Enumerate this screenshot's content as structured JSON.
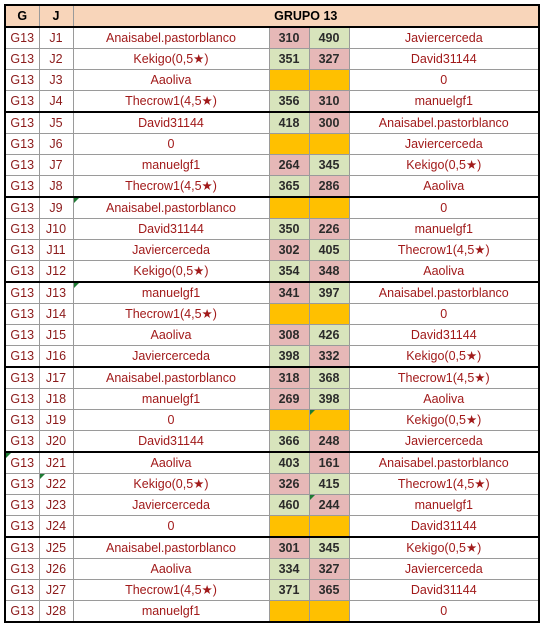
{
  "header": {
    "g": "G",
    "j": "J",
    "title": "GRUPO 13"
  },
  "rows": [
    {
      "g": "G13",
      "j": "J1",
      "p1": "Anaisabel.pastorblanco",
      "s1": "310",
      "s2": "490",
      "p2": "Javiercerceda",
      "r1": "lose",
      "r2": "win"
    },
    {
      "g": "G13",
      "j": "J2",
      "p1": "Kekigo(0,5★)",
      "s1": "351",
      "s2": "327",
      "p2": "David31144",
      "r1": "win",
      "r2": "lose"
    },
    {
      "g": "G13",
      "j": "J3",
      "p1": "Aaoliva",
      "s1": "",
      "s2": "",
      "p2": "0",
      "r1": "bye",
      "r2": "bye"
    },
    {
      "g": "G13",
      "j": "J4",
      "p1": "Thecrow1(4,5★)",
      "s1": "356",
      "s2": "310",
      "p2": "manuelgf1",
      "r1": "win",
      "r2": "lose"
    },
    {
      "g": "G13",
      "j": "J5",
      "p1": "David31144",
      "s1": "418",
      "s2": "300",
      "p2": "Anaisabel.pastorblanco",
      "r1": "win",
      "r2": "lose"
    },
    {
      "g": "G13",
      "j": "J6",
      "p1": "0",
      "s1": "",
      "s2": "",
      "p2": "Javiercerceda",
      "r1": "bye",
      "r2": "bye"
    },
    {
      "g": "G13",
      "j": "J7",
      "p1": "manuelgf1",
      "s1": "264",
      "s2": "345",
      "p2": "Kekigo(0,5★)",
      "r1": "lose",
      "r2": "win"
    },
    {
      "g": "G13",
      "j": "J8",
      "p1": "Thecrow1(4,5★)",
      "s1": "365",
      "s2": "286",
      "p2": "Aaoliva",
      "r1": "win",
      "r2": "lose"
    },
    {
      "g": "G13",
      "j": "J9",
      "p1": "Anaisabel.pastorblanco",
      "s1": "",
      "s2": "",
      "p2": "0",
      "r1": "bye",
      "r2": "bye"
    },
    {
      "g": "G13",
      "j": "J10",
      "p1": "David31144",
      "s1": "350",
      "s2": "226",
      "p2": "manuelgf1",
      "r1": "win",
      "r2": "lose"
    },
    {
      "g": "G13",
      "j": "J11",
      "p1": "Javiercerceda",
      "s1": "302",
      "s2": "405",
      "p2": "Thecrow1(4,5★)",
      "r1": "lose",
      "r2": "win"
    },
    {
      "g": "G13",
      "j": "J12",
      "p1": "Kekigo(0,5★)",
      "s1": "354",
      "s2": "348",
      "p2": "Aaoliva",
      "r1": "win",
      "r2": "lose"
    },
    {
      "g": "G13",
      "j": "J13",
      "p1": "manuelgf1",
      "s1": "341",
      "s2": "397",
      "p2": "Anaisabel.pastorblanco",
      "r1": "lose",
      "r2": "win"
    },
    {
      "g": "G13",
      "j": "J14",
      "p1": "Thecrow1(4,5★)",
      "s1": "",
      "s2": "",
      "p2": "0",
      "r1": "bye",
      "r2": "bye"
    },
    {
      "g": "G13",
      "j": "J15",
      "p1": "Aaoliva",
      "s1": "308",
      "s2": "426",
      "p2": "David31144",
      "r1": "lose",
      "r2": "win"
    },
    {
      "g": "G13",
      "j": "J16",
      "p1": "Javiercerceda",
      "s1": "398",
      "s2": "332",
      "p2": "Kekigo(0,5★)",
      "r1": "win",
      "r2": "lose"
    },
    {
      "g": "G13",
      "j": "J17",
      "p1": "Anaisabel.pastorblanco",
      "s1": "318",
      "s2": "368",
      "p2": "Thecrow1(4,5★)",
      "r1": "lose",
      "r2": "win"
    },
    {
      "g": "G13",
      "j": "J18",
      "p1": "manuelgf1",
      "s1": "269",
      "s2": "398",
      "p2": "Aaoliva",
      "r1": "lose",
      "r2": "win"
    },
    {
      "g": "G13",
      "j": "J19",
      "p1": "0",
      "s1": "",
      "s2": "",
      "p2": "Kekigo(0,5★)",
      "r1": "bye",
      "r2": "bye"
    },
    {
      "g": "G13",
      "j": "J20",
      "p1": "David31144",
      "s1": "366",
      "s2": "248",
      "p2": "Javiercerceda",
      "r1": "win",
      "r2": "lose"
    },
    {
      "g": "G13",
      "j": "J21",
      "p1": "Aaoliva",
      "s1": "403",
      "s2": "161",
      "p2": "Anaisabel.pastorblanco",
      "r1": "win",
      "r2": "lose"
    },
    {
      "g": "G13",
      "j": "J22",
      "p1": "Kekigo(0,5★)",
      "s1": "326",
      "s2": "415",
      "p2": "Thecrow1(4,5★)",
      "r1": "lose",
      "r2": "win"
    },
    {
      "g": "G13",
      "j": "J23",
      "p1": "Javiercerceda",
      "s1": "460",
      "s2": "244",
      "p2": "manuelgf1",
      "r1": "win",
      "r2": "lose"
    },
    {
      "g": "G13",
      "j": "J24",
      "p1": "0",
      "s1": "",
      "s2": "",
      "p2": "David31144",
      "r1": "bye",
      "r2": "bye"
    },
    {
      "g": "G13",
      "j": "J25",
      "p1": "Anaisabel.pastorblanco",
      "s1": "301",
      "s2": "345",
      "p2": "Kekigo(0,5★)",
      "r1": "lose",
      "r2": "win"
    },
    {
      "g": "G13",
      "j": "J26",
      "p1": "Aaoliva",
      "s1": "334",
      "s2": "327",
      "p2": "Javiercerceda",
      "r1": "win",
      "r2": "lose"
    },
    {
      "g": "G13",
      "j": "J27",
      "p1": "Thecrow1(4,5★)",
      "s1": "371",
      "s2": "365",
      "p2": "David31144",
      "r1": "win",
      "r2": "lose"
    },
    {
      "g": "G13",
      "j": "J28",
      "p1": "manuelgf1",
      "s1": "",
      "s2": "",
      "p2": "0",
      "r1": "bye",
      "r2": "bye"
    }
  ],
  "colors": {
    "header_bg": "#f8d5ba",
    "text_red": "#a11a1a",
    "win": "#d8e4bc",
    "lose": "#e6b8b7",
    "bye": "#ffc000"
  }
}
